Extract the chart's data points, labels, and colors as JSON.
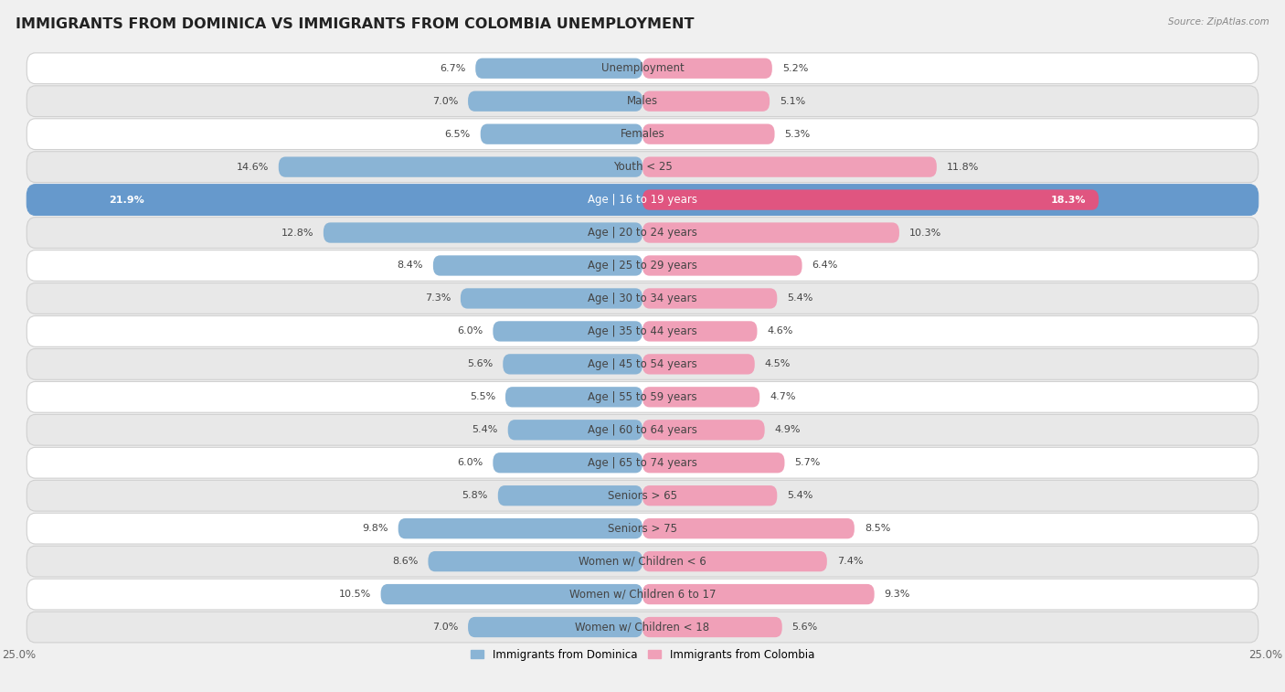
{
  "title": "IMMIGRANTS FROM DOMINICA VS IMMIGRANTS FROM COLOMBIA UNEMPLOYMENT",
  "source": "Source: ZipAtlas.com",
  "categories": [
    "Unemployment",
    "Males",
    "Females",
    "Youth < 25",
    "Age | 16 to 19 years",
    "Age | 20 to 24 years",
    "Age | 25 to 29 years",
    "Age | 30 to 34 years",
    "Age | 35 to 44 years",
    "Age | 45 to 54 years",
    "Age | 55 to 59 years",
    "Age | 60 to 64 years",
    "Age | 65 to 74 years",
    "Seniors > 65",
    "Seniors > 75",
    "Women w/ Children < 6",
    "Women w/ Children 6 to 17",
    "Women w/ Children < 18"
  ],
  "dominica_values": [
    6.7,
    7.0,
    6.5,
    14.6,
    21.9,
    12.8,
    8.4,
    7.3,
    6.0,
    5.6,
    5.5,
    5.4,
    6.0,
    5.8,
    9.8,
    8.6,
    10.5,
    7.0
  ],
  "colombia_values": [
    5.2,
    5.1,
    5.3,
    11.8,
    18.3,
    10.3,
    6.4,
    5.4,
    4.6,
    4.5,
    4.7,
    4.9,
    5.7,
    5.4,
    8.5,
    7.4,
    9.3,
    5.6
  ],
  "dominica_color": "#8ab4d5",
  "colombia_color": "#f0a0b8",
  "dominica_highlight_color": "#6699cc",
  "colombia_highlight_color": "#e05580",
  "background_color": "#f0f0f0",
  "row_light_color": "#ffffff",
  "row_dark_color": "#e8e8e8",
  "row_border_color": "#d0d0d0",
  "highlight_row_color": "#6699cc",
  "xlim": 25.0,
  "legend_dominica": "Immigrants from Dominica",
  "legend_colombia": "Immigrants from Colombia",
  "title_fontsize": 11.5,
  "label_fontsize": 8.5,
  "value_fontsize": 8.0,
  "highlight_idx": 4
}
